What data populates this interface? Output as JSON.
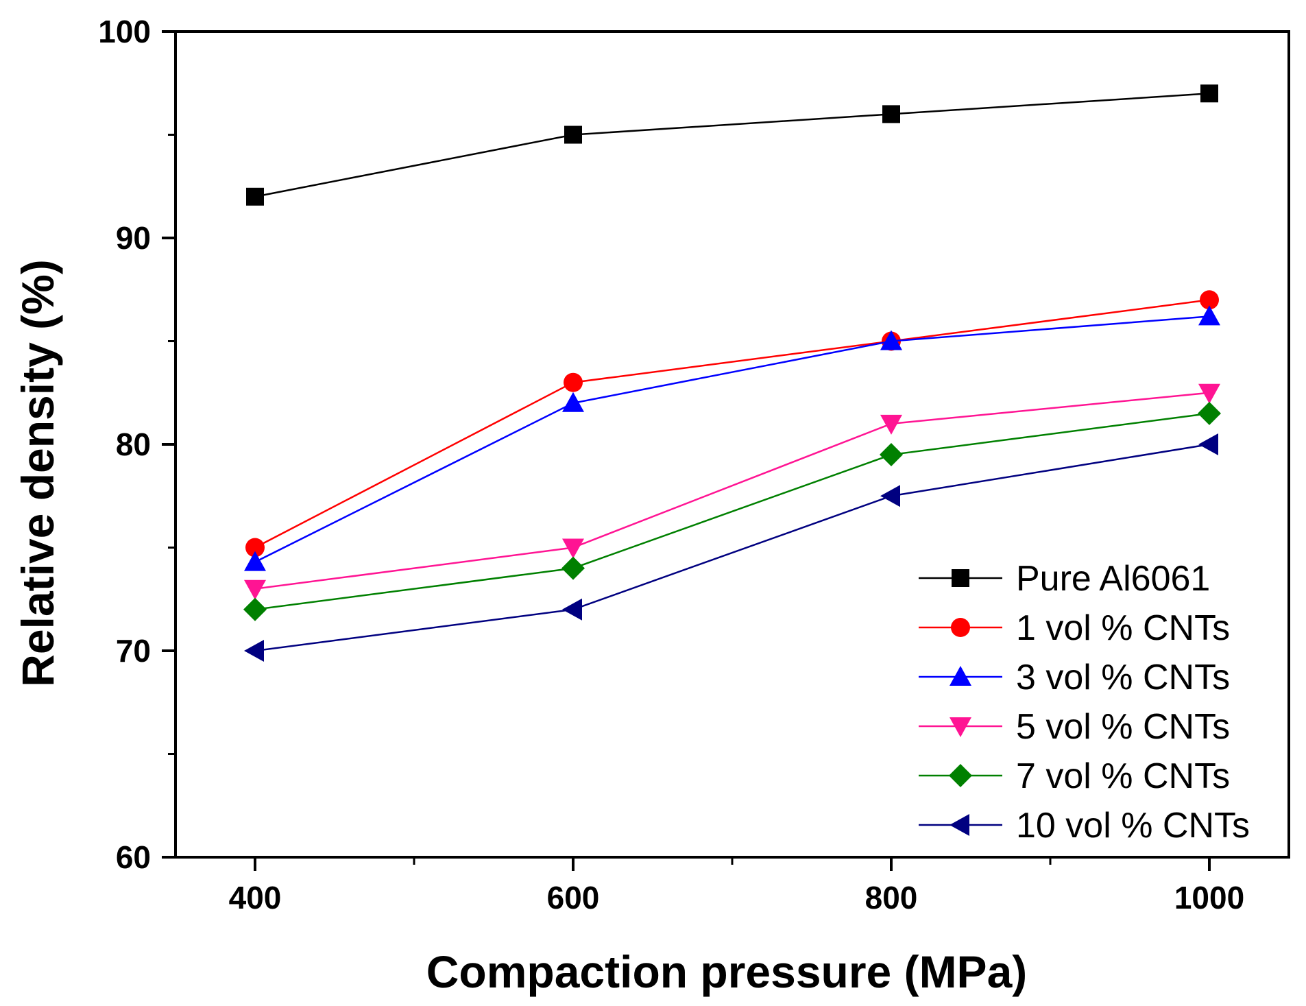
{
  "chart_data": {
    "type": "line",
    "title": "",
    "xlabel": "Compaction pressure (MPa)",
    "ylabel": "Relative density (%)",
    "x": [
      400,
      600,
      800,
      1000
    ],
    "xlim": [
      350,
      1050
    ],
    "ylim": [
      60,
      100
    ],
    "xticks": [
      400,
      600,
      800,
      1000
    ],
    "yticks": [
      60,
      70,
      80,
      90,
      100
    ],
    "grid": false,
    "legend_position": "bottom-right",
    "series": [
      {
        "name": "Pure Al6061",
        "color": "#000000",
        "marker": "square",
        "values": [
          92,
          95,
          96,
          97
        ]
      },
      {
        "name": "1 vol % CNTs",
        "color": "#ff0000",
        "marker": "circle",
        "values": [
          75,
          83,
          85,
          87
        ]
      },
      {
        "name": "3 vol % CNTs",
        "color": "#0000ff",
        "marker": "triangle-up",
        "values": [
          74.3,
          82,
          85,
          86.2
        ]
      },
      {
        "name": "5 vol % CNTs",
        "color": "#ff1493",
        "marker": "triangle-down",
        "values": [
          73,
          75,
          81,
          82.5
        ]
      },
      {
        "name": "7 vol % CNTs",
        "color": "#008000",
        "marker": "diamond",
        "values": [
          72,
          74,
          79.5,
          81.5
        ]
      },
      {
        "name": "10 vol % CNTs",
        "color": "#000080",
        "marker": "triangle-left",
        "values": [
          70,
          72,
          77.5,
          80
        ]
      }
    ]
  }
}
